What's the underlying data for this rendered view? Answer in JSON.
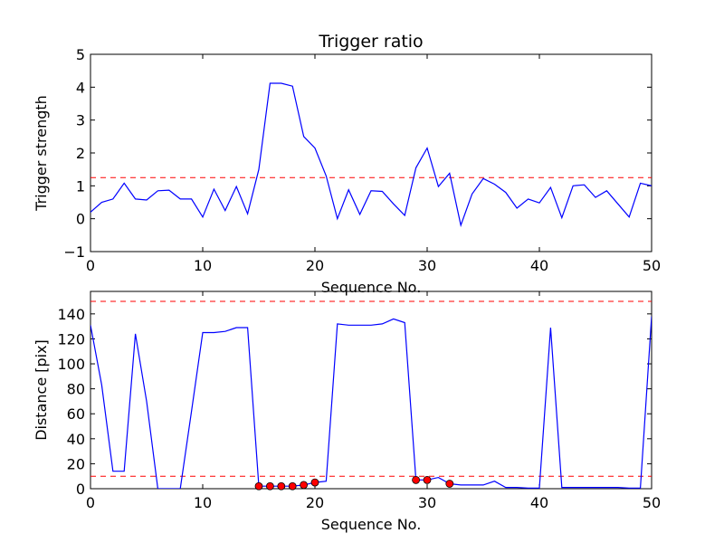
{
  "chart_data": [
    {
      "type": "line",
      "title": "Trigger ratio",
      "xlabel": "Sequence No.",
      "ylabel": "Trigger strength",
      "xlim": [
        0,
        50
      ],
      "ylim": [
        -1,
        5
      ],
      "xticks": [
        0,
        10,
        20,
        30,
        40,
        50
      ],
      "yticks": [
        -1,
        0,
        1,
        2,
        3,
        4,
        5
      ],
      "ytick_labels": [
        "−1",
        "0",
        "1",
        "2",
        "3",
        "4",
        "5"
      ],
      "grid": false,
      "series": [
        {
          "color": "#0000ff",
          "style": "solid",
          "x": [
            0,
            1,
            2,
            3,
            4,
            5,
            6,
            7,
            8,
            9,
            10,
            11,
            12,
            13,
            14,
            15,
            16,
            17,
            18,
            19,
            20,
            21,
            22,
            23,
            24,
            25,
            26,
            27,
            28,
            29,
            30,
            31,
            32,
            33,
            34,
            35,
            36,
            37,
            38,
            39,
            40,
            41,
            42,
            43,
            44,
            45,
            46,
            47,
            48,
            49,
            50
          ],
          "y": [
            0.2,
            0.5,
            0.6,
            1.08,
            0.6,
            0.57,
            0.85,
            0.87,
            0.6,
            0.6,
            0.05,
            0.9,
            0.25,
            0.98,
            0.15,
            1.5,
            4.12,
            4.12,
            4.03,
            2.5,
            2.15,
            1.3,
            0.0,
            0.88,
            0.13,
            0.85,
            0.83,
            0.45,
            0.1,
            1.55,
            2.15,
            0.98,
            1.38,
            -0.2,
            0.75,
            1.22,
            1.05,
            0.8,
            0.32,
            0.6,
            0.48,
            0.95,
            0.03,
            1.0,
            1.03,
            0.65,
            0.85,
            0.45,
            0.05,
            1.08,
            1.0
          ]
        }
      ],
      "hlines": [
        {
          "y": 1.25,
          "color": "#ff0000",
          "style": "dashed"
        }
      ]
    },
    {
      "type": "line",
      "title": "",
      "xlabel": "Sequence No.",
      "ylabel": "Distance [pix]",
      "xlim": [
        0,
        50
      ],
      "ylim": [
        0,
        158
      ],
      "xticks": [
        0,
        10,
        20,
        30,
        40,
        50
      ],
      "yticks": [
        0,
        20,
        40,
        60,
        80,
        100,
        120,
        140
      ],
      "grid": false,
      "series": [
        {
          "color": "#0000ff",
          "style": "solid",
          "x": [
            0,
            1,
            2,
            3,
            4,
            5,
            6,
            7,
            8,
            9,
            10,
            11,
            12,
            13,
            14,
            15,
            16,
            17,
            18,
            19,
            20,
            21,
            22,
            23,
            24,
            25,
            26,
            27,
            28,
            29,
            30,
            31,
            32,
            33,
            34,
            35,
            36,
            37,
            38,
            39,
            40,
            41,
            42,
            43,
            44,
            45,
            46,
            47,
            48,
            49,
            50
          ],
          "y": [
            131,
            83,
            14,
            14,
            124,
            70,
            0,
            0,
            0,
            62,
            125,
            125,
            126,
            129,
            129,
            2,
            2,
            2,
            2,
            3,
            5,
            6,
            132,
            131,
            131,
            131,
            132,
            136,
            133,
            7,
            7,
            9,
            4,
            3,
            3,
            3,
            6,
            1,
            1,
            0.5,
            0.5,
            129,
            1,
            1,
            1,
            1,
            1,
            1,
            0.5,
            0.5,
            138
          ]
        }
      ],
      "markers": {
        "color": "#ff0000",
        "x": [
          15,
          16,
          17,
          18,
          19,
          20,
          29,
          30,
          32
        ],
        "y": [
          2,
          2,
          2,
          2,
          3,
          5,
          7,
          7,
          4
        ]
      },
      "hlines": [
        {
          "y": 150,
          "color": "#ff0000",
          "style": "dashed"
        },
        {
          "y": 10,
          "color": "#ff0000",
          "style": "dashed"
        }
      ]
    }
  ]
}
